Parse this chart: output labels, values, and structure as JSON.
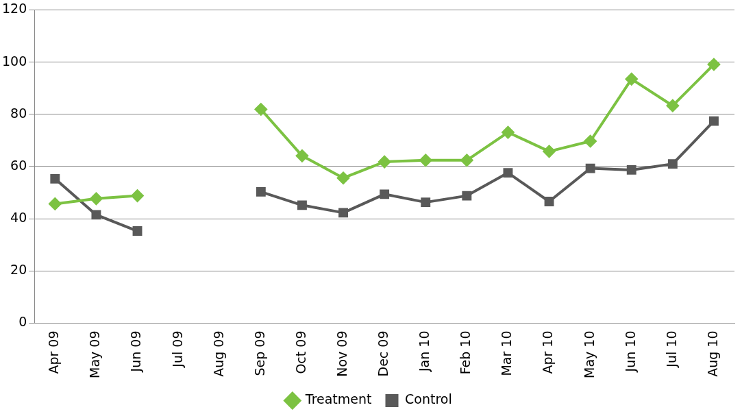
{
  "chart_data": {
    "type": "line",
    "categories": [
      "Apr 09",
      "May 09",
      "Jun 09",
      "Jul 09",
      "Aug 09",
      "Sep 09",
      "Oct 09",
      "Nov 09",
      "Dec 09",
      "Jan 10",
      "Feb 10",
      "Mar 10",
      "Apr 10",
      "May 10",
      "Jun 10",
      "Jul 10",
      "Aug 10"
    ],
    "series": [
      {
        "name": "Treatment",
        "color": "#7cc242",
        "marker": "diamond",
        "values": [
          45.7,
          47.7,
          48.8,
          null,
          null,
          81.9,
          64.1,
          55.6,
          61.8,
          62.4,
          62.4,
          73.1,
          65.8,
          69.7,
          93.5,
          83.3,
          99.1
        ]
      },
      {
        "name": "Control",
        "color": "#595959",
        "marker": "square",
        "values": [
          55.3,
          41.5,
          35.3,
          null,
          null,
          50.3,
          45.2,
          42.3,
          49.4,
          46.3,
          48.8,
          57.6,
          46.6,
          59.3,
          58.7,
          61.0,
          77.4
        ]
      }
    ],
    "ylim": [
      0,
      120
    ],
    "yticks": [
      0,
      20,
      40,
      60,
      80,
      100,
      120
    ],
    "grid": "y",
    "legend": "bottom"
  }
}
